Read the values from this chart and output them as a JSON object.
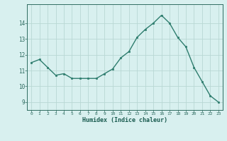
{
  "x": [
    0,
    1,
    2,
    3,
    4,
    5,
    6,
    7,
    8,
    9,
    10,
    11,
    12,
    13,
    14,
    15,
    16,
    17,
    18,
    19,
    20,
    21,
    22,
    23
  ],
  "y": [
    11.5,
    11.7,
    11.2,
    10.7,
    10.8,
    10.5,
    10.5,
    10.5,
    10.5,
    10.8,
    11.1,
    11.8,
    12.2,
    13.1,
    13.6,
    14.0,
    14.5,
    14.0,
    13.1,
    12.5,
    11.2,
    10.3,
    9.4,
    9.0
  ],
  "line_color": "#2e7d6e",
  "marker": "s",
  "marker_size": 2.0,
  "bg_color": "#d8f0ef",
  "grid_color": "#b8d8d4",
  "tick_color": "#2e6b60",
  "xlabel": "Humidex (Indice chaleur)",
  "xlabel_color": "#1a5c50",
  "ylabel_labels": [
    9,
    10,
    11,
    12,
    13,
    14
  ],
  "ylim": [
    8.5,
    15.2
  ],
  "xlim": [
    -0.5,
    23.5
  ],
  "font_family": "monospace",
  "line_width": 1.0
}
